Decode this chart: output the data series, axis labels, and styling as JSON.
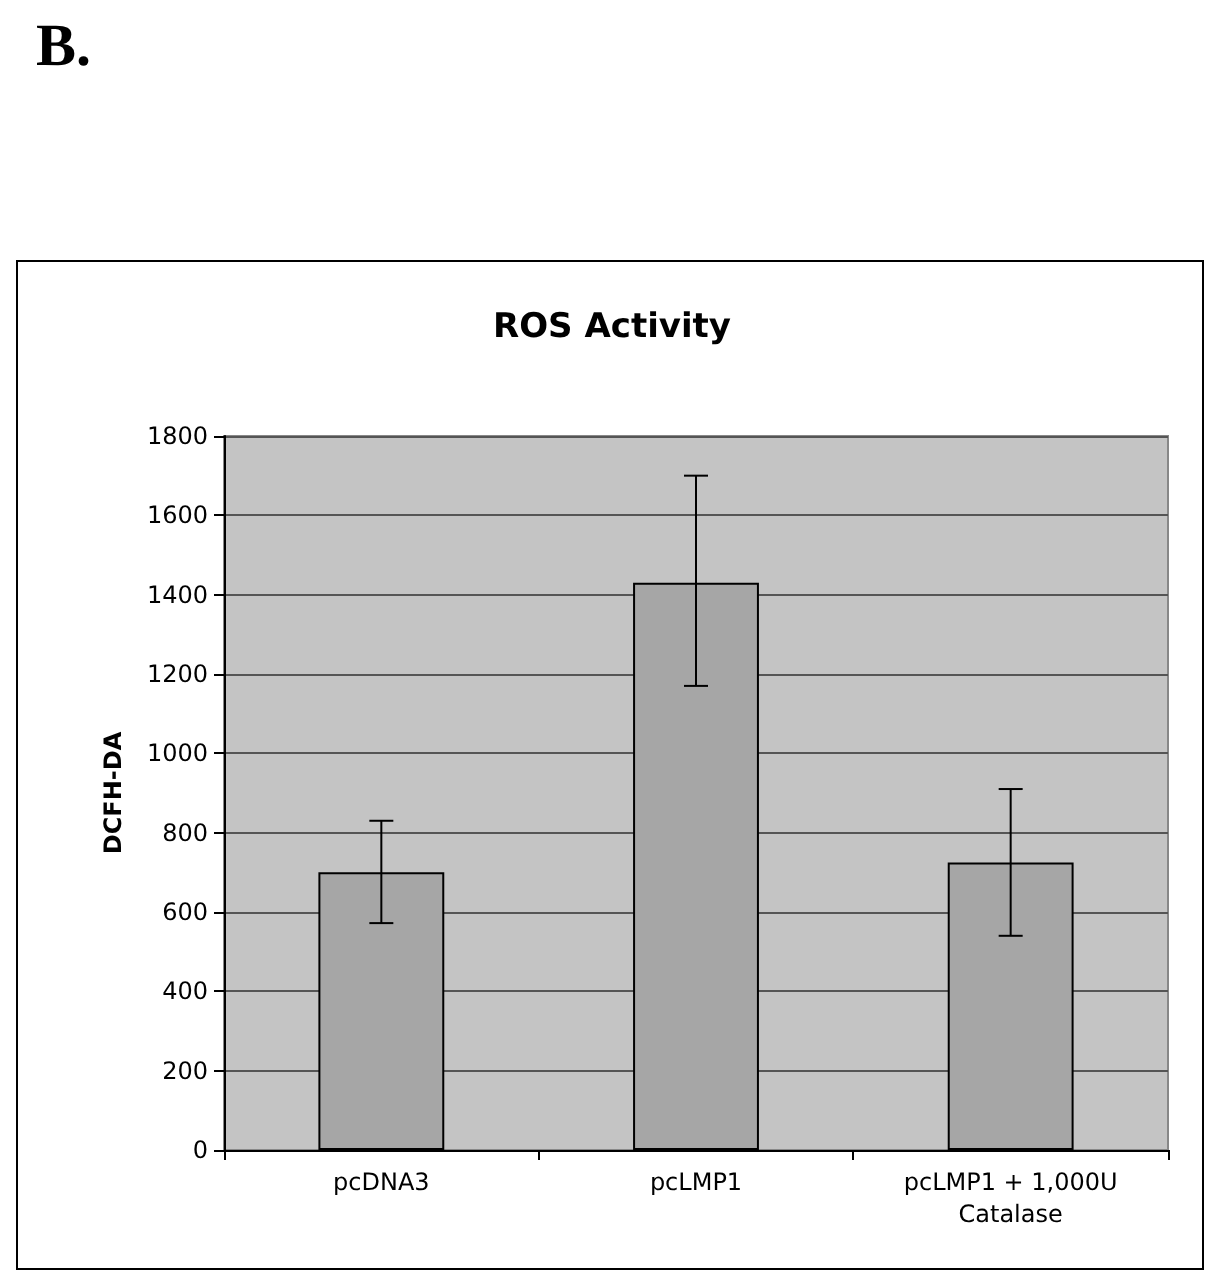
{
  "chart_data": {
    "type": "bar",
    "title": "ROS Activity",
    "ylabel": "DCFH-DA",
    "categories": [
      "pcDNA3",
      "pcLMP1",
      "pcLMP1 + 1,000U\nCatalase"
    ],
    "values": [
      700,
      1430,
      725
    ],
    "errors": [
      [
        572,
        830
      ],
      [
        1170,
        1700
      ],
      [
        540,
        910
      ]
    ],
    "color": "#a6a6a6",
    "ylim": [
      0,
      1800
    ],
    "yticks": [
      0,
      200,
      400,
      600,
      800,
      1000,
      1200,
      1400,
      1600,
      1800
    ],
    "grid": "y",
    "annotations": [
      "B."
    ]
  }
}
